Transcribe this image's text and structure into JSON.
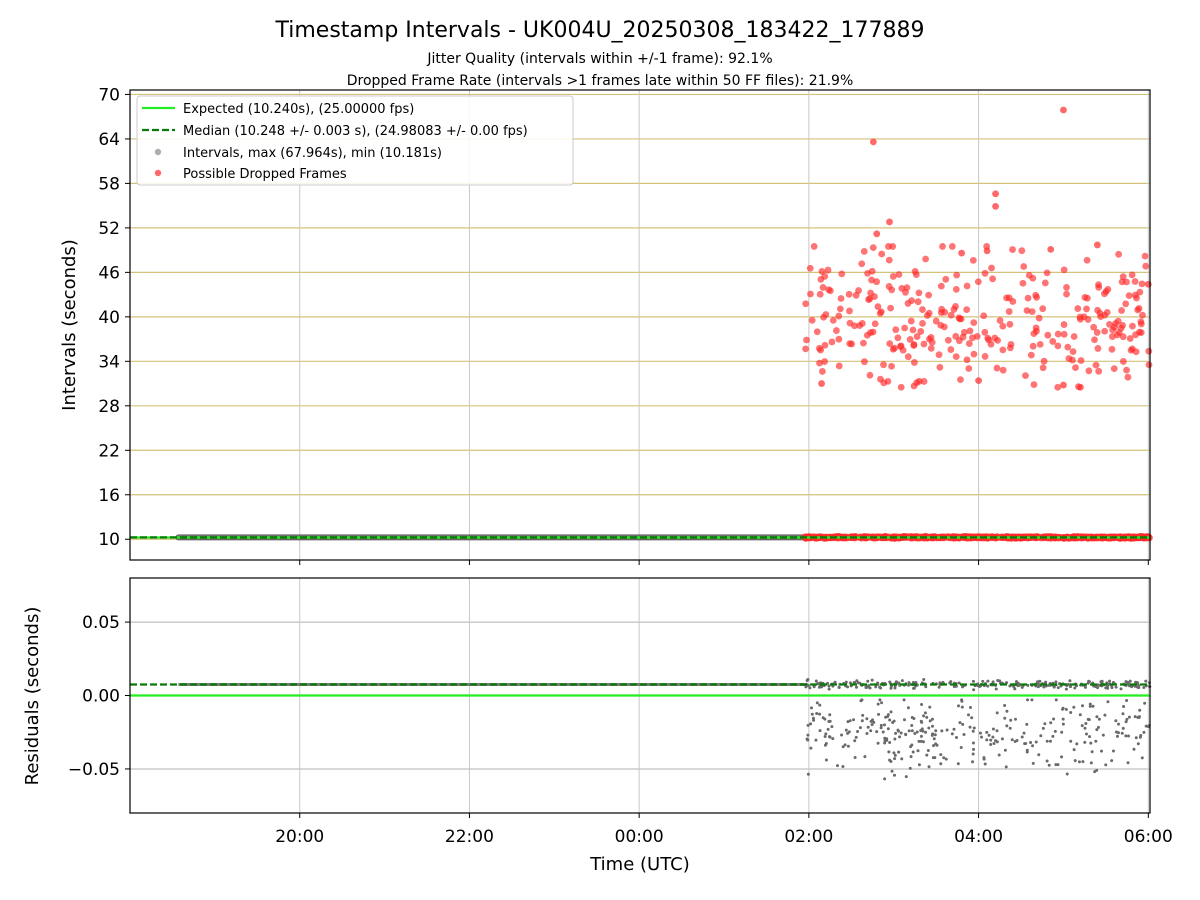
{
  "chart_data": {
    "type": "scatter",
    "title": "Timestamp Intervals - UK004U_20250308_183422_177889",
    "subtitle_lines": [
      "Jitter Quality (intervals within +/-1 frame): 92.1%",
      "Dropped Frame Rate (intervals >1 frames late within 50 FF files): 21.9%"
    ],
    "xlabel": "Time (UTC)",
    "xlim_hours": [
      18.0,
      30.02
    ],
    "x_ticks": [
      {
        "hour": 20,
        "label": "20:00"
      },
      {
        "hour": 22,
        "label": "22:00"
      },
      {
        "hour": 24,
        "label": "00:00"
      },
      {
        "hour": 26,
        "label": "02:00"
      },
      {
        "hour": 28,
        "label": "04:00"
      },
      {
        "hour": 30,
        "label": "06:00"
      }
    ],
    "top": {
      "ylabel": "Intervals (seconds)",
      "ylim": [
        7.2,
        70.6
      ],
      "y_ticks": [
        10,
        16,
        22,
        28,
        34,
        40,
        46,
        52,
        58,
        64,
        70
      ],
      "grid_color": "#d4c27a",
      "expected_value": 10.24,
      "median_value": 10.248,
      "intervals_range_hours": [
        18.57,
        25.95
      ],
      "dropped_baseline_range_hours": [
        25.95,
        30.02
      ],
      "dropped_baseline_value": 10.25,
      "dropped_high_range_hours": [
        25.95,
        30.02
      ],
      "dropped_high_median": 39.7,
      "dropped_high_spread": 4.5,
      "dropped_outliers": [
        {
          "hour": 26.76,
          "value": 63.6
        },
        {
          "hour": 29.0,
          "value": 67.9
        },
        {
          "hour": 28.2,
          "value": 56.6
        },
        {
          "hour": 28.2,
          "value": 54.9
        },
        {
          "hour": 26.8,
          "value": 51.2
        },
        {
          "hour": 26.95,
          "value": 52.8
        },
        {
          "hour": 29.4,
          "value": 49.7
        },
        {
          "hour": 28.85,
          "value": 49.1
        },
        {
          "hour": 27.8,
          "value": 48.6
        },
        {
          "hour": 28.1,
          "value": 48.9
        },
        {
          "hour": 30.0,
          "value": 44.4
        },
        {
          "hour": 29.0,
          "value": 30.8
        },
        {
          "hour": 26.15,
          "value": 31.0
        },
        {
          "hour": 28.0,
          "value": 31.4
        },
        {
          "hour": 27.3,
          "value": 31.3
        },
        {
          "hour": 29.2,
          "value": 30.5
        }
      ]
    },
    "bottom": {
      "ylabel": "Residuals (seconds)",
      "ylim": [
        -0.08,
        0.08
      ],
      "y_ticks": [
        {
          "value": 0.05,
          "label": "0.05"
        },
        {
          "value": 0.0,
          "label": "0.00"
        },
        {
          "value": -0.05,
          "label": "−0.05"
        }
      ],
      "grid_color": "#b0b0b0",
      "expected_value": 0.0,
      "median_value": 0.0075,
      "residual_low_range_hours": [
        25.95,
        30.02
      ],
      "residual_low_center": -0.025,
      "residual_low_spread": 0.012
    },
    "legend": {
      "placement": "top-left",
      "entries": [
        {
          "label": "Expected (10.240s), (25.00000 fps)",
          "kind": "solid-line",
          "color": "#22ee22"
        },
        {
          "label": "Median (10.248 +/- 0.003 s), (24.98083 +/- 0.00 fps)",
          "kind": "dashed-line",
          "color": "#087a08"
        },
        {
          "label": "Intervals, max (67.964s), min (10.181s)",
          "kind": "point",
          "color": "#9a9a9a"
        },
        {
          "label": "Possible Dropped Frames",
          "kind": "point",
          "color": "#ff2a2a"
        }
      ]
    },
    "colors": {
      "expected": "#22ee22",
      "median": "#087a08",
      "intervals": "#555555",
      "dropped": "#ff2a2a",
      "residual": "#6a6a6a"
    }
  }
}
